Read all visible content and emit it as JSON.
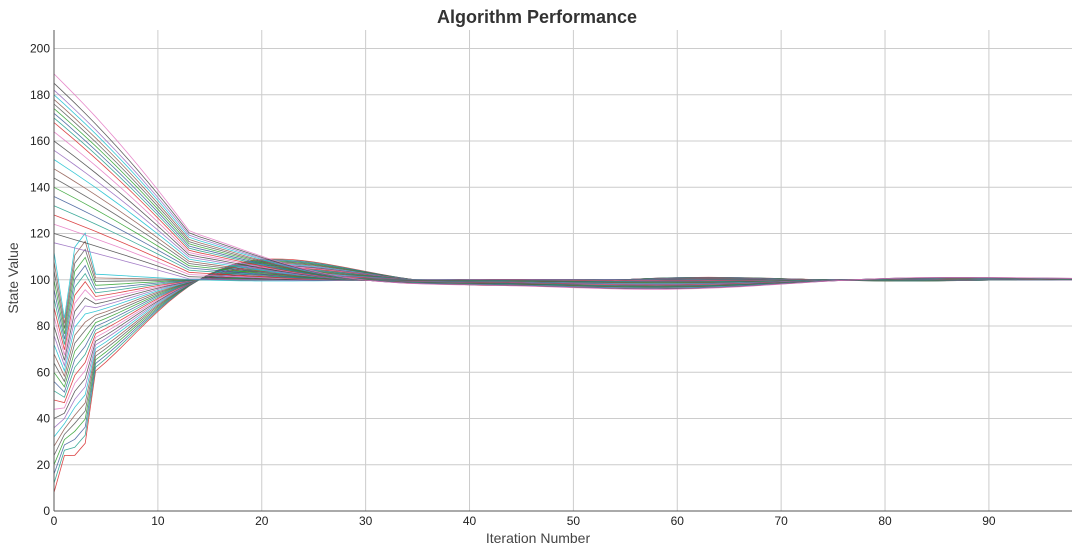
{
  "chart_data": {
    "type": "line",
    "title": "Algorithm Performance",
    "xlabel": "Iteration Number",
    "ylabel": "State Value",
    "xlim": [
      0,
      98
    ],
    "ylim": [
      0,
      208
    ],
    "x_ticks": [
      0,
      10,
      20,
      30,
      40,
      50,
      60,
      70,
      80,
      90
    ],
    "y_ticks": [
      0,
      20,
      40,
      60,
      80,
      100,
      120,
      140,
      160,
      180,
      200
    ],
    "grid": true,
    "legend": "none",
    "target_value": 100,
    "series_count": 50,
    "iterations": 98,
    "initial_values": [
      8,
      12,
      16,
      20,
      24,
      28,
      32,
      36,
      40,
      44,
      48,
      52,
      56,
      60,
      64,
      68,
      72,
      76,
      80,
      84,
      88,
      92,
      96,
      100,
      104,
      108,
      112,
      116,
      120,
      124,
      128,
      132,
      136,
      140,
      144,
      148,
      152,
      156,
      160,
      164,
      168,
      170,
      172,
      174,
      176,
      178,
      180,
      182,
      185,
      189
    ],
    "representative_series": [
      {
        "name": "",
        "x": [
          0,
          13,
          22,
          30,
          40,
          50,
          60,
          70,
          80,
          98
        ],
        "y": [
          189,
          119,
          117,
          110,
          108,
          106,
          105,
          104,
          103,
          102
        ]
      },
      {
        "name": "",
        "x": [
          0,
          1,
          2,
          5,
          10,
          15,
          20,
          30,
          40,
          50,
          60,
          80,
          98
        ],
        "y": [
          20,
          125,
          42,
          135,
          115,
          100,
          109,
          104,
          97,
          101,
          100,
          101,
          101
        ]
      },
      {
        "name": "",
        "x": [
          0,
          1,
          3,
          5,
          8,
          15,
          20,
          30,
          40,
          50,
          60,
          80,
          98
        ],
        "y": [
          10,
          25,
          50,
          65,
          80,
          97,
          91,
          95,
          95,
          98,
          98,
          99,
          99
        ]
      }
    ],
    "palette": [
      "#d62728",
      "#1f9e89",
      "#3b5998",
      "#2ca02c",
      "#555555",
      "#8c564b",
      "#17becf",
      "#9467bd",
      "#444444",
      "#e377c2"
    ]
  }
}
